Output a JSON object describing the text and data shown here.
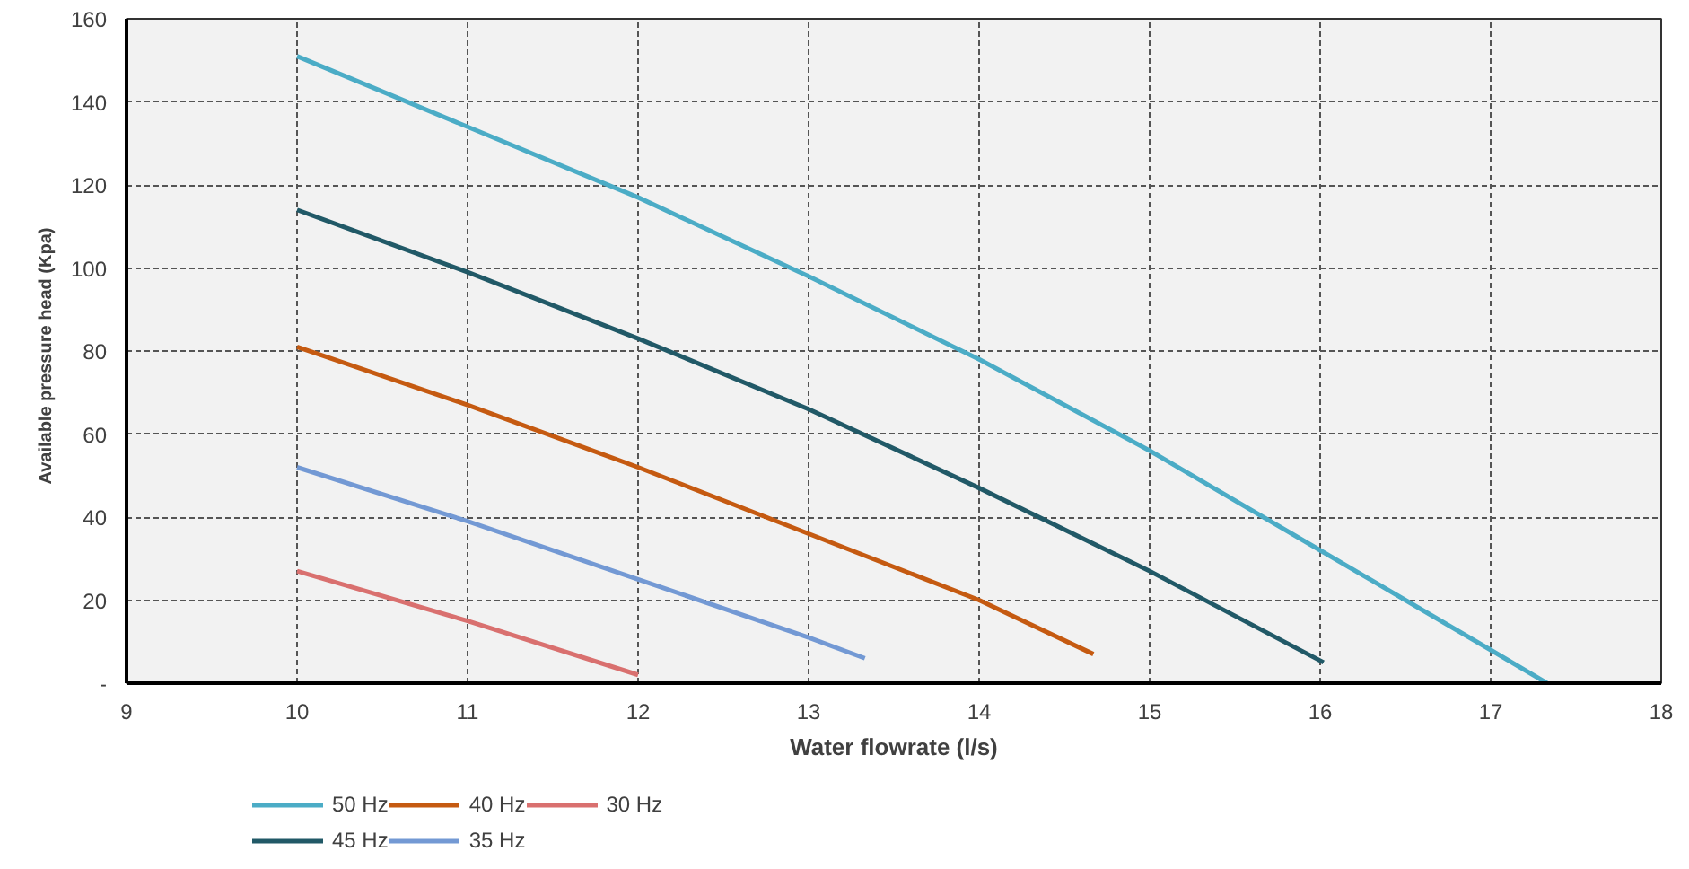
{
  "chart_data": {
    "type": "line",
    "xlabel": "Water flowrate (l/s)",
    "ylabel": "Available  pressure head  (Kpa)",
    "xlim": [
      9,
      18
    ],
    "xticks": [
      9,
      10,
      11,
      12,
      13,
      14,
      15,
      16,
      17,
      18
    ],
    "ylim": [
      0,
      160
    ],
    "yticks": [
      {
        "value": 0,
        "label": "-"
      },
      20,
      40,
      60,
      80,
      100,
      120,
      140,
      160
    ],
    "grid": true,
    "legend": "bottom left",
    "marker": "none",
    "line_style": "solid",
    "series": [
      {
        "name": "50 Hz",
        "color": "#4bacc6",
        "x": [
          10,
          11,
          12,
          13,
          14,
          15,
          16,
          16.5,
          17,
          17.33
        ],
        "values": [
          151,
          134,
          117,
          98,
          78,
          56,
          32,
          20,
          8,
          0
        ]
      },
      {
        "name": "45 Hz",
        "color": "#215967",
        "x": [
          10,
          11,
          12,
          13,
          14,
          15,
          16.02
        ],
        "values": [
          114,
          99,
          83,
          66,
          47,
          27,
          5
        ]
      },
      {
        "name": "40 Hz",
        "color": "#c55a11",
        "x": [
          10,
          11,
          12,
          13,
          14,
          14.67
        ],
        "values": [
          81,
          67,
          52,
          36,
          20,
          7
        ]
      },
      {
        "name": "35 Hz",
        "color": "#7399d4",
        "x": [
          10,
          11,
          12,
          13,
          13.33
        ],
        "values": [
          52,
          39,
          25,
          11,
          6
        ]
      },
      {
        "name": "30 Hz",
        "color": "#d9706f",
        "x": [
          10,
          11,
          12
        ],
        "values": [
          27,
          15,
          2
        ]
      }
    ]
  }
}
